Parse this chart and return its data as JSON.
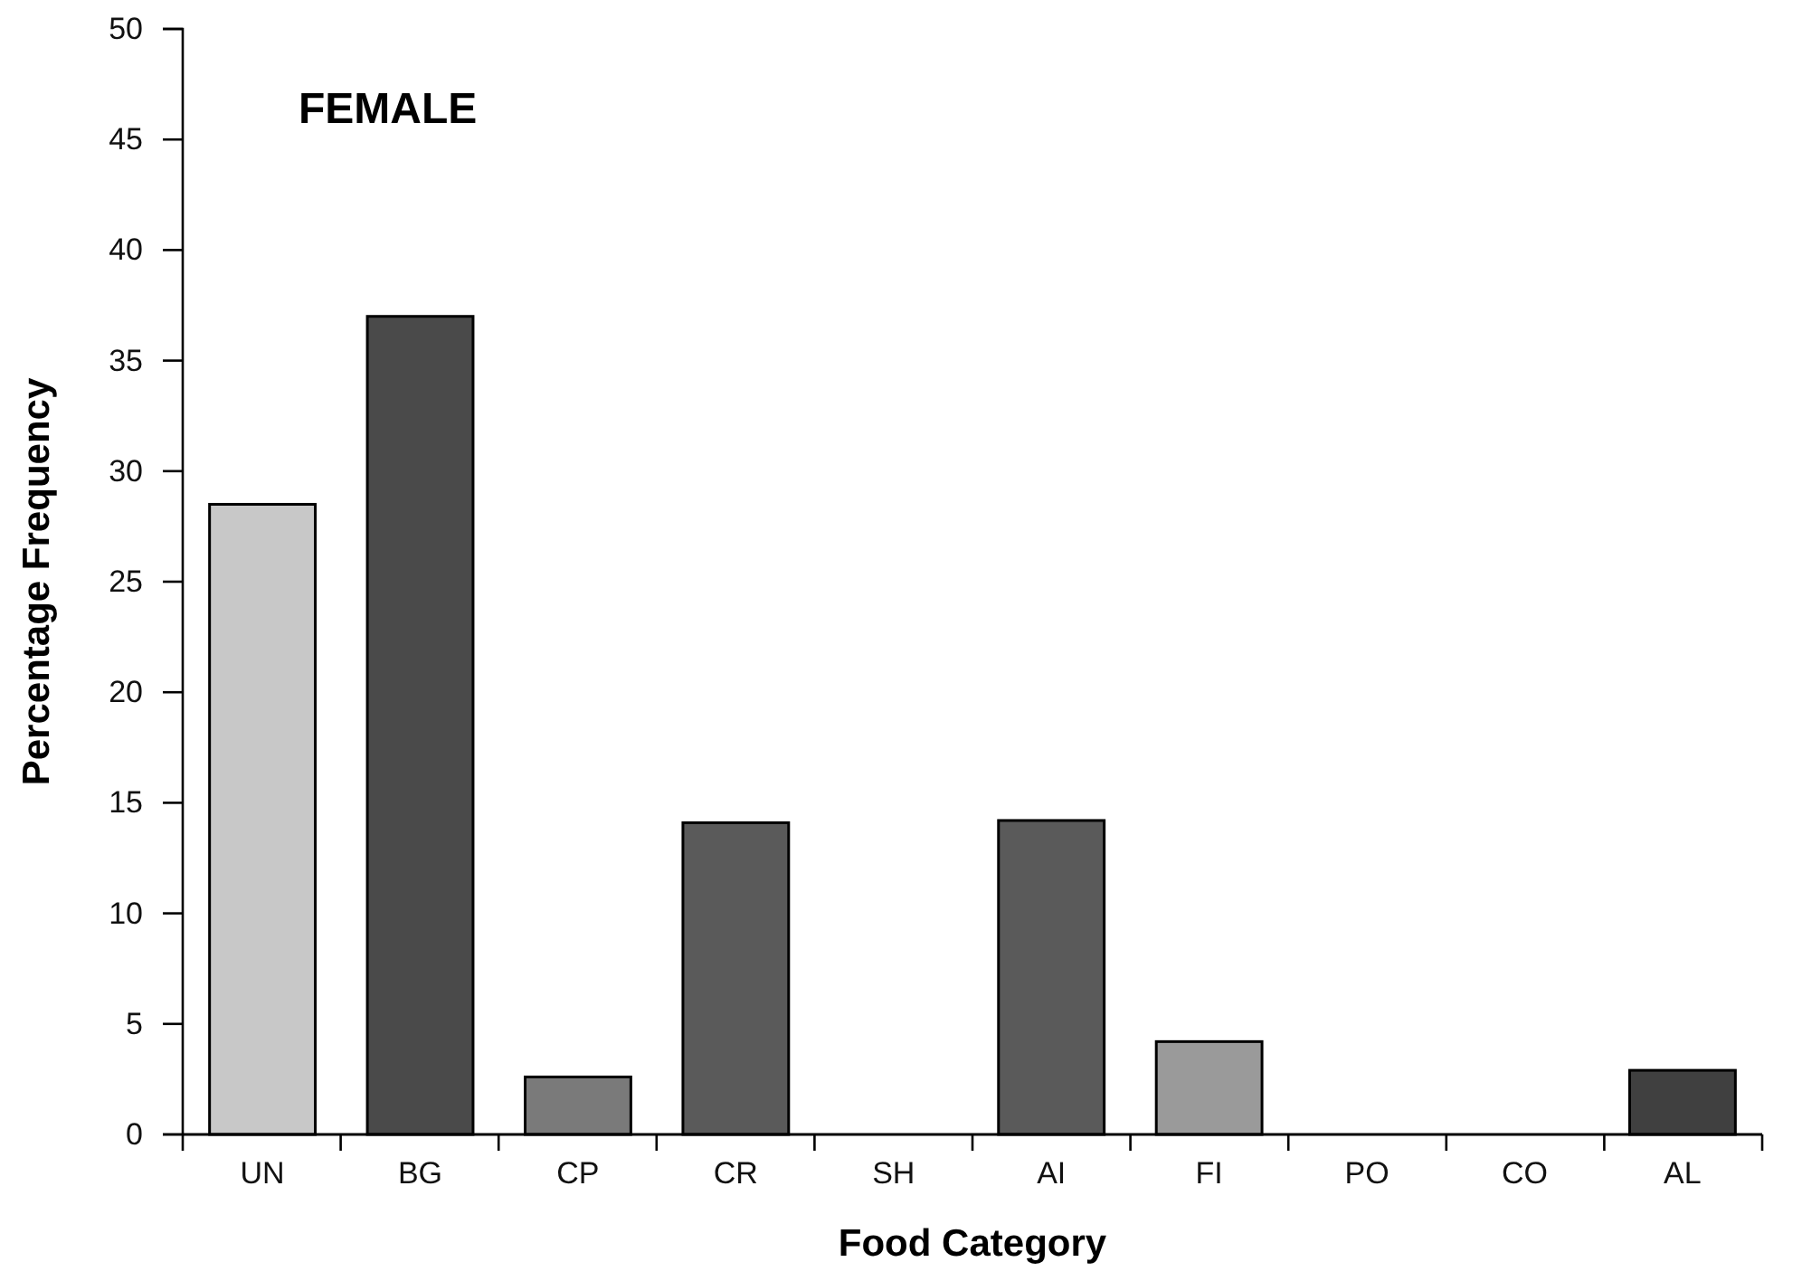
{
  "chart_data": {
    "type": "bar",
    "title": "FEMALE",
    "xlabel": "Food Category",
    "ylabel": "Percentage Frequency",
    "categories": [
      "UN",
      "BG",
      "CP",
      "CR",
      "SH",
      "AI",
      "FI",
      "PO",
      "CO",
      "AL"
    ],
    "values": [
      28.5,
      37.0,
      2.6,
      14.1,
      0,
      14.2,
      4.2,
      0,
      0,
      2.9
    ],
    "colors": [
      "#c8c8c8",
      "#4a4a4a",
      "#7a7a7a",
      "#5a5a5a",
      "#5a5a5a",
      "#5a5a5a",
      "#9a9a9a",
      "#808080",
      "#808080",
      "#404040"
    ],
    "ylim": [
      0,
      50
    ],
    "yticks": [
      0,
      5,
      10,
      15,
      20,
      25,
      30,
      35,
      40,
      45,
      50
    ],
    "grid": false
  }
}
